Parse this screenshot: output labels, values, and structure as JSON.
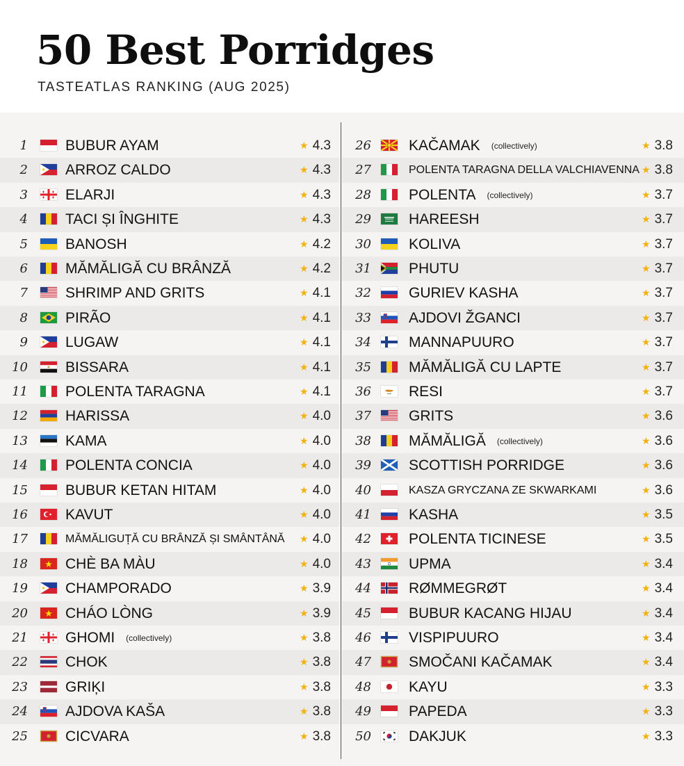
{
  "header": {
    "title": "50 Best Porridges",
    "subtitle": "TASTEATLAS RANKING (AUG 2025)"
  },
  "ranking": [
    {
      "rank": "1",
      "name": "BUBUR AYAM",
      "note": "",
      "score": "4.3",
      "flag": "indonesia-flag-icon"
    },
    {
      "rank": "2",
      "name": "ARROZ CALDO",
      "note": "",
      "score": "4.3",
      "flag": "philippines-flag-icon"
    },
    {
      "rank": "3",
      "name": "ELARJI",
      "note": "",
      "score": "4.3",
      "flag": "georgia-flag-icon"
    },
    {
      "rank": "4",
      "name": "TACI ȘI ÎNGHITE",
      "note": "",
      "score": "4.3",
      "flag": "romania-flag-icon"
    },
    {
      "rank": "5",
      "name": "BANOSH",
      "note": "",
      "score": "4.2",
      "flag": "ukraine-flag-icon"
    },
    {
      "rank": "6",
      "name": "MĂMĂLIGĂ CU BRÂNZĂ",
      "note": "",
      "score": "4.2",
      "flag": "romania-flag-icon"
    },
    {
      "rank": "7",
      "name": "SHRIMP AND GRITS",
      "note": "",
      "score": "4.1",
      "flag": "usa-flag-icon"
    },
    {
      "rank": "8",
      "name": "PIRÃO",
      "note": "",
      "score": "4.1",
      "flag": "brazil-flag-icon"
    },
    {
      "rank": "9",
      "name": "LUGAW",
      "note": "",
      "score": "4.1",
      "flag": "philippines-flag-icon"
    },
    {
      "rank": "10",
      "name": "BISSARA",
      "note": "",
      "score": "4.1",
      "flag": "egypt-flag-icon"
    },
    {
      "rank": "11",
      "name": "POLENTA TARAGNA",
      "note": "",
      "score": "4.1",
      "flag": "italy-flag-icon"
    },
    {
      "rank": "12",
      "name": "HARISSA",
      "note": "",
      "score": "4.0",
      "flag": "armenia-flag-icon"
    },
    {
      "rank": "13",
      "name": "KAMA",
      "note": "",
      "score": "4.0",
      "flag": "estonia-flag-icon"
    },
    {
      "rank": "14",
      "name": "POLENTA CONCIA",
      "note": "",
      "score": "4.0",
      "flag": "italy-flag-icon"
    },
    {
      "rank": "15",
      "name": "BUBUR KETAN HITAM",
      "note": "",
      "score": "4.0",
      "flag": "indonesia-flag-icon"
    },
    {
      "rank": "16",
      "name": "KAVUT",
      "note": "",
      "score": "4.0",
      "flag": "turkey-flag-icon"
    },
    {
      "rank": "17",
      "name": "MĂMĂLIGUȚĂ CU BRÂNZĂ ȘI SMÂNTÂNĂ",
      "note": "",
      "score": "4.0",
      "flag": "romania-flag-icon",
      "small": true
    },
    {
      "rank": "18",
      "name": "CHÈ BA MÀU",
      "note": "",
      "score": "4.0",
      "flag": "vietnam-flag-icon"
    },
    {
      "rank": "19",
      "name": "CHAMPORADO",
      "note": "",
      "score": "3.9",
      "flag": "philippines-flag-icon"
    },
    {
      "rank": "20",
      "name": "CHÁO LÒNG",
      "note": "",
      "score": "3.9",
      "flag": "vietnam-flag-icon"
    },
    {
      "rank": "21",
      "name": "GHOMI",
      "note": "(collectively)",
      "score": "3.8",
      "flag": "georgia-flag-icon"
    },
    {
      "rank": "22",
      "name": "CHOK",
      "note": "",
      "score": "3.8",
      "flag": "thailand-flag-icon"
    },
    {
      "rank": "23",
      "name": "GRIĶI",
      "note": "",
      "score": "3.8",
      "flag": "latvia-flag-icon"
    },
    {
      "rank": "24",
      "name": "AJDOVA KAŠA",
      "note": "",
      "score": "3.8",
      "flag": "slovenia-flag-icon"
    },
    {
      "rank": "25",
      "name": "CICVARA",
      "note": "",
      "score": "3.8",
      "flag": "montenegro-flag-icon"
    },
    {
      "rank": "26",
      "name": "KAČAMAK",
      "note": "(collectively)",
      "score": "3.8",
      "flag": "north-macedonia-flag-icon"
    },
    {
      "rank": "27",
      "name": "POLENTA TARAGNA DELLA VALCHIAVENNA",
      "note": "",
      "score": "3.8",
      "flag": "italy-flag-icon",
      "small": true
    },
    {
      "rank": "28",
      "name": "POLENTA",
      "note": "(collectively)",
      "score": "3.7",
      "flag": "italy-flag-icon"
    },
    {
      "rank": "29",
      "name": "HAREESH",
      "note": "",
      "score": "3.7",
      "flag": "saudi-arabia-flag-icon"
    },
    {
      "rank": "30",
      "name": "KOLIVA",
      "note": "",
      "score": "3.7",
      "flag": "ukraine-flag-icon"
    },
    {
      "rank": "31",
      "name": "PHUTU",
      "note": "",
      "score": "3.7",
      "flag": "south-africa-flag-icon"
    },
    {
      "rank": "32",
      "name": "GURIEV KASHA",
      "note": "",
      "score": "3.7",
      "flag": "russia-flag-icon"
    },
    {
      "rank": "33",
      "name": "AJDOVI ŽGANCI",
      "note": "",
      "score": "3.7",
      "flag": "slovenia-flag-icon"
    },
    {
      "rank": "34",
      "name": "MANNAPUURO",
      "note": "",
      "score": "3.7",
      "flag": "finland-flag-icon"
    },
    {
      "rank": "35",
      "name": "MĂMĂLIGĂ CU LAPTE",
      "note": "",
      "score": "3.7",
      "flag": "romania-flag-icon"
    },
    {
      "rank": "36",
      "name": "RESI",
      "note": "",
      "score": "3.7",
      "flag": "cyprus-flag-icon"
    },
    {
      "rank": "37",
      "name": "GRITS",
      "note": "",
      "score": "3.6",
      "flag": "usa-flag-icon"
    },
    {
      "rank": "38",
      "name": "MĂMĂLIGĂ",
      "note": "(collectively)",
      "score": "3.6",
      "flag": "romania-flag-icon"
    },
    {
      "rank": "39",
      "name": "SCOTTISH PORRIDGE",
      "note": "",
      "score": "3.6",
      "flag": "scotland-flag-icon"
    },
    {
      "rank": "40",
      "name": "KASZA GRYCZANA ZE SKWARKAMI",
      "note": "",
      "score": "3.6",
      "flag": "poland-flag-icon",
      "small": true
    },
    {
      "rank": "41",
      "name": "KASHA",
      "note": "",
      "score": "3.5",
      "flag": "russia-flag-icon"
    },
    {
      "rank": "42",
      "name": "POLENTA TICINESE",
      "note": "",
      "score": "3.5",
      "flag": "switzerland-flag-icon"
    },
    {
      "rank": "43",
      "name": "UPMA",
      "note": "",
      "score": "3.4",
      "flag": "india-flag-icon"
    },
    {
      "rank": "44",
      "name": "RØMMEGRØT",
      "note": "",
      "score": "3.4",
      "flag": "norway-flag-icon"
    },
    {
      "rank": "45",
      "name": "BUBUR KACANG HIJAU",
      "note": "",
      "score": "3.4",
      "flag": "indonesia-flag-icon"
    },
    {
      "rank": "46",
      "name": "VISPIPUURO",
      "note": "",
      "score": "3.4",
      "flag": "finland-flag-icon"
    },
    {
      "rank": "47",
      "name": "SMOČANI KAČAMAK",
      "note": "",
      "score": "3.4",
      "flag": "montenegro-flag-icon"
    },
    {
      "rank": "48",
      "name": "KAYU",
      "note": "",
      "score": "3.3",
      "flag": "japan-flag-icon"
    },
    {
      "rank": "49",
      "name": "PAPEDA",
      "note": "",
      "score": "3.3",
      "flag": "indonesia-flag-icon"
    },
    {
      "rank": "50",
      "name": "DAKJUK",
      "note": "",
      "score": "3.3",
      "flag": "south-korea-flag-icon"
    }
  ]
}
